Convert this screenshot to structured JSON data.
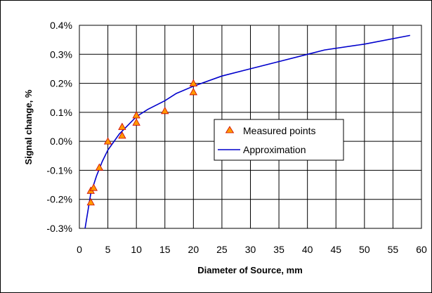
{
  "chart_data": {
    "type": "scatter",
    "title": "",
    "xlabel": "Diameter of Source, mm",
    "ylabel": "Signal change, %",
    "xlim": [
      0,
      60
    ],
    "ylim": [
      -0.3,
      0.4
    ],
    "x_ticks": [
      "0",
      "5",
      "10",
      "15",
      "20",
      "25",
      "30",
      "35",
      "40",
      "45",
      "50",
      "55",
      "60"
    ],
    "y_ticks": [
      "-0.3%",
      "-0.2%",
      "-0.1%",
      "0.0%",
      "0.1%",
      "0.2%",
      "0.3%",
      "0.4%"
    ],
    "grid": true,
    "legend_position": "center-right",
    "series": [
      {
        "name": "Measured points",
        "kind": "scatter",
        "marker": "triangle",
        "color": "#ff9900",
        "x": [
          2,
          2,
          2.5,
          3.5,
          5,
          7.5,
          7.5,
          10,
          10,
          15,
          20,
          20
        ],
        "y": [
          -0.21,
          -0.17,
          -0.16,
          -0.09,
          0.0,
          0.05,
          0.02,
          0.09,
          0.065,
          0.105,
          0.2,
          0.17
        ]
      },
      {
        "name": "Approximation",
        "kind": "line",
        "color": "#0000cc",
        "x": [
          1,
          2,
          3,
          4,
          5,
          7,
          10,
          12,
          15,
          17,
          20,
          25,
          30,
          35,
          40,
          43,
          50,
          58
        ],
        "y": [
          -0.3,
          -0.18,
          -0.12,
          -0.07,
          -0.03,
          0.025,
          0.085,
          0.11,
          0.14,
          0.165,
          0.19,
          0.225,
          0.25,
          0.275,
          0.3,
          0.315,
          0.335,
          0.365
        ]
      }
    ]
  }
}
